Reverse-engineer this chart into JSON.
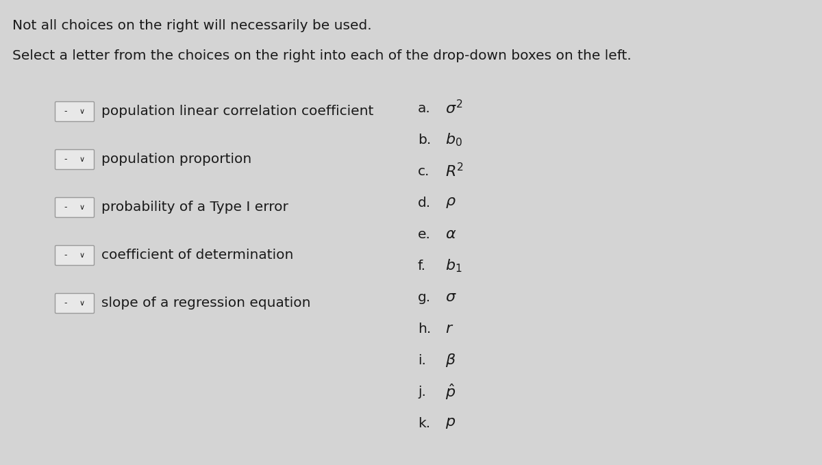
{
  "background_color": "#d4d4d4",
  "title_line1": "Not all choices on the right will necessarily be used.",
  "title_line2": "Select a letter from the choices on the right into each of the drop-down boxes on the left.",
  "left_items": [
    "population linear correlation coefficient",
    "population proportion",
    "probability of a Type I error",
    "coefficient of determination",
    "slope of a regression equation"
  ],
  "right_items": [
    [
      "a.",
      "$\\sigma^2$"
    ],
    [
      "b.",
      "$b_0$"
    ],
    [
      "c.",
      "$R^2$"
    ],
    [
      "d.",
      "$\\rho$"
    ],
    [
      "e.",
      "$\\alpha$"
    ],
    [
      "f.",
      "$b_1$"
    ],
    [
      "g.",
      "$\\sigma$"
    ],
    [
      "h.",
      "$r$"
    ],
    [
      "i.",
      "$\\beta$"
    ],
    [
      "j.",
      "$\\hat{p}$"
    ],
    [
      "k.",
      "$p$"
    ]
  ],
  "text_fontsize": 14.5,
  "symbol_fontsize": 16,
  "header_fontsize": 14.5,
  "text_color": "#1a1a1a",
  "box_facecolor": "#e8e8e8",
  "box_edge_color": "#999999"
}
